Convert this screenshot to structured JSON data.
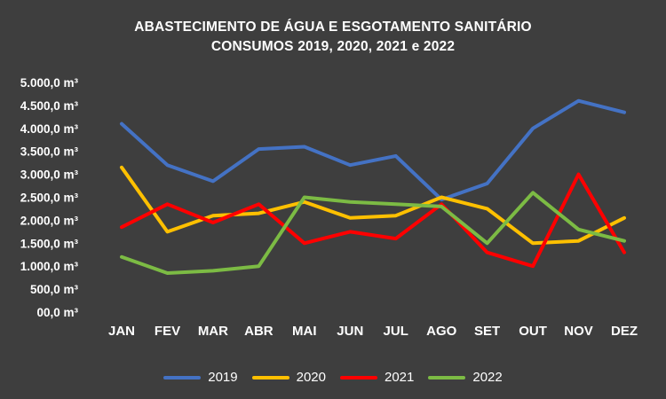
{
  "title": {
    "line1": "ABASTECIMENTO DE ÁGUA E ESGOTAMENTO SANITÁRIO",
    "line2": "CONSUMOS 2019, 2020, 2021 e 2022"
  },
  "colors": {
    "background": "#3E3E3E",
    "text": "#FFFFFF"
  },
  "chart_data": {
    "type": "line",
    "title": "ABASTECIMENTO DE ÁGUA E ESGOTAMENTO SANITÁRIO CONSUMOS 2019, 2020, 2021 e 2022",
    "unit": "m³",
    "grid": false,
    "legend_position": "bottom",
    "ylim": [
      0,
      5000
    ],
    "categories": [
      "JAN",
      "FEV",
      "MAR",
      "ABR",
      "MAI",
      "JUN",
      "JUL",
      "AGO",
      "SET",
      "OUT",
      "NOV",
      "DEZ"
    ],
    "y_ticks": [
      {
        "value": 0,
        "label": "00,0 m³"
      },
      {
        "value": 500,
        "label": "500,0 m³"
      },
      {
        "value": 1000,
        "label": "1.000,0 m³"
      },
      {
        "value": 1500,
        "label": "1.500,0 m³"
      },
      {
        "value": 2000,
        "label": "2.000,0 m³"
      },
      {
        "value": 2500,
        "label": "2.500,0 m³"
      },
      {
        "value": 3000,
        "label": "3.000,0 m³"
      },
      {
        "value": 3500,
        "label": "3.500,0 m³"
      },
      {
        "value": 4000,
        "label": "4.000,0 m³"
      },
      {
        "value": 4500,
        "label": "4.500,0 m³"
      },
      {
        "value": 5000,
        "label": "5.000,0 m³"
      }
    ],
    "series": [
      {
        "name": "2019",
        "color": "#4472C4",
        "values": [
          4100,
          3200,
          2850,
          3550,
          3600,
          3200,
          3400,
          2450,
          2800,
          4000,
          4600,
          4350
        ]
      },
      {
        "name": "2020",
        "color": "#FFC000",
        "values": [
          3150,
          1750,
          2100,
          2150,
          2400,
          2050,
          2100,
          2500,
          2250,
          1500,
          1550,
          2050
        ]
      },
      {
        "name": "2021",
        "color": "#FF0000",
        "values": [
          1850,
          2350,
          1950,
          2350,
          1500,
          1750,
          1600,
          2350,
          1300,
          1000,
          3000,
          1300
        ]
      },
      {
        "name": "2022",
        "color": "#7CBB44",
        "values": [
          1200,
          850,
          900,
          1000,
          2500,
          2400,
          2350,
          2300,
          1500,
          2600,
          1800,
          1550
        ]
      }
    ]
  }
}
